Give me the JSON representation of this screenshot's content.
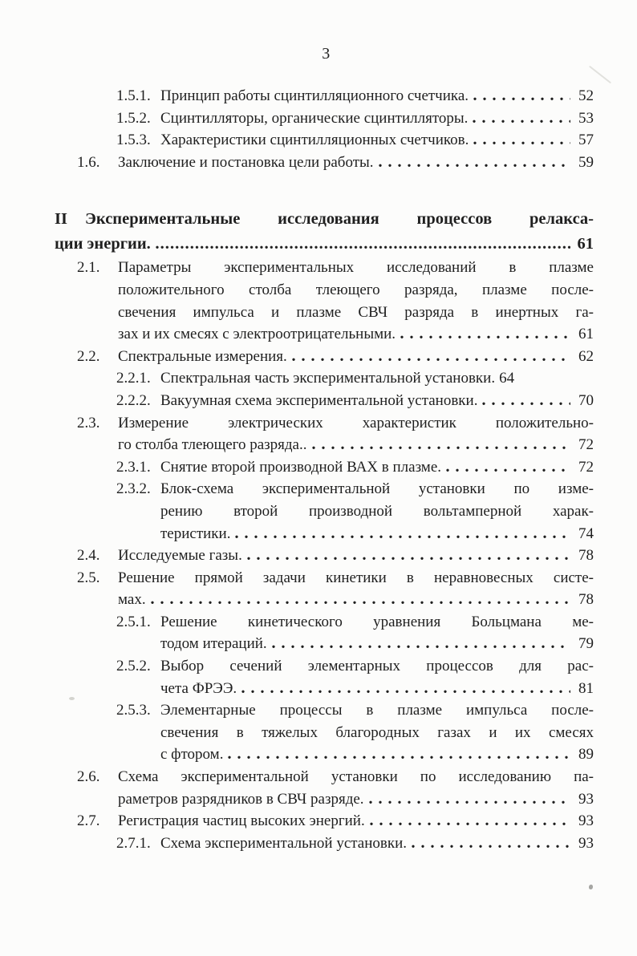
{
  "colors": {
    "ink": "#1f1f1f",
    "paper": "#fcfcfb"
  },
  "header": {
    "page_number": "3"
  },
  "toc": {
    "lines": [
      {
        "type": "l3",
        "num": "1.5.1.",
        "text": "Принцип работы сцинтилляционного счетчика.",
        "leader": "sparse",
        "page": "52"
      },
      {
        "type": "l3",
        "num": "1.5.2.",
        "text": "Сцинтилляторы, органические сцинтилляторы.",
        "leader": "sparse",
        "page": "53"
      },
      {
        "type": "l3",
        "num": "1.5.3.",
        "text": "Характеристики сцинтилляционных счетчиков.",
        "leader": "sparse",
        "page": "57"
      },
      {
        "type": "l2",
        "num": "1.6.",
        "text": "Заключение и постановка цели работы.",
        "leader": "sparse",
        "page": "59"
      },
      {
        "type": "gap"
      },
      {
        "type": "h1",
        "num": "II",
        "text": "Экспериментальные исследования процессов релакса-",
        "fill": true
      },
      {
        "type": "h1cont",
        "text": "ции энергии.",
        "leader": "dense",
        "page": "61"
      },
      {
        "type": "l2",
        "num": "2.1.",
        "text": "Параметры экспериментальных исследований в плазме",
        "fill": true
      },
      {
        "type": "l2cont",
        "text": "положительного столба тлеющего разряда, плазме после-",
        "fill": true
      },
      {
        "type": "l2cont",
        "text": "свечения импульса и плазме СВЧ разряда в инертных га-",
        "fill": true
      },
      {
        "type": "l2cont",
        "text": "зах и их смесях с электроотрицательными.",
        "leader": "sparse",
        "page": "61"
      },
      {
        "type": "l2",
        "num": "2.2.",
        "text": "Спектральные измерения.",
        "leader": "sparse",
        "page": "62"
      },
      {
        "type": "l3",
        "num": "2.2.1.",
        "text": "Спектральная часть экспериментальной установки.",
        "page": "64"
      },
      {
        "type": "l3",
        "num": "2.2.2.",
        "text": "Вакуумная схема экспериментальной установки.",
        "leader": "sparse",
        "page": "70"
      },
      {
        "type": "l2",
        "num": "2.3.",
        "text": "Измерение электрических характеристик положительно-",
        "fill": true
      },
      {
        "type": "l2cont",
        "text": "го столба тлеющего разряда..",
        "leader": "sparse",
        "page": "72"
      },
      {
        "type": "l3",
        "num": "2.3.1.",
        "text": "Снятие второй производной ВАХ в плазме.",
        "leader": "sparse",
        "page": "72"
      },
      {
        "type": "l3",
        "num": "2.3.2.",
        "text": "Блок-схема экспериментальной установки по изме-",
        "fill": true
      },
      {
        "type": "l3cont",
        "text": "рению второй производной вольтамперной харак-",
        "fill": true
      },
      {
        "type": "l3cont",
        "text": "теристики.",
        "leader": "sparse",
        "page": "74"
      },
      {
        "type": "l2",
        "num": "2.4.",
        "text": "Исследуемые газы.",
        "leader": "sparse",
        "page": "78"
      },
      {
        "type": "l2",
        "num": "2.5.",
        "text": "Решение прямой задачи кинетики в неравновесных систе-",
        "fill": true
      },
      {
        "type": "l2cont",
        "text": "мах.",
        "leader": "sparse",
        "page": "78"
      },
      {
        "type": "l3",
        "num": "2.5.1.",
        "text": "Решение кинетического уравнения Больцмана ме-",
        "fill": true
      },
      {
        "type": "l3cont",
        "text": "тодом итераций.",
        "leader": "sparse",
        "page": "79"
      },
      {
        "type": "l3",
        "num": "2.5.2.",
        "text": "Выбор сечений элементарных процессов для рас-",
        "fill": true
      },
      {
        "type": "l3cont",
        "text": "чета ФРЭЭ.",
        "leader": "sparse",
        "page": "81"
      },
      {
        "type": "l3",
        "num": "2.5.3.",
        "text": "Элементарные процессы в плазме импульса после-",
        "fill": true
      },
      {
        "type": "l3cont",
        "text": "свечения в тяжелых благородных газах и их смесях",
        "fill": true
      },
      {
        "type": "l3cont",
        "text": "с фтором.",
        "leader": "sparse",
        "page": "89"
      },
      {
        "type": "l2",
        "num": "2.6.",
        "text": "Схема экспериментальной установки по исследованию па-",
        "fill": true
      },
      {
        "type": "l2cont",
        "text": "раметров разрядников в СВЧ разряде.",
        "leader": "sparse",
        "page": "93"
      },
      {
        "type": "l2",
        "num": "2.7.",
        "text": "Регистрация частиц высоких энергий.",
        "leader": "sparse",
        "page": "93"
      },
      {
        "type": "l3",
        "num": "2.7.1.",
        "text": "Схема экспериментальной установки.",
        "leader": "sparse",
        "page": "93"
      }
    ]
  }
}
